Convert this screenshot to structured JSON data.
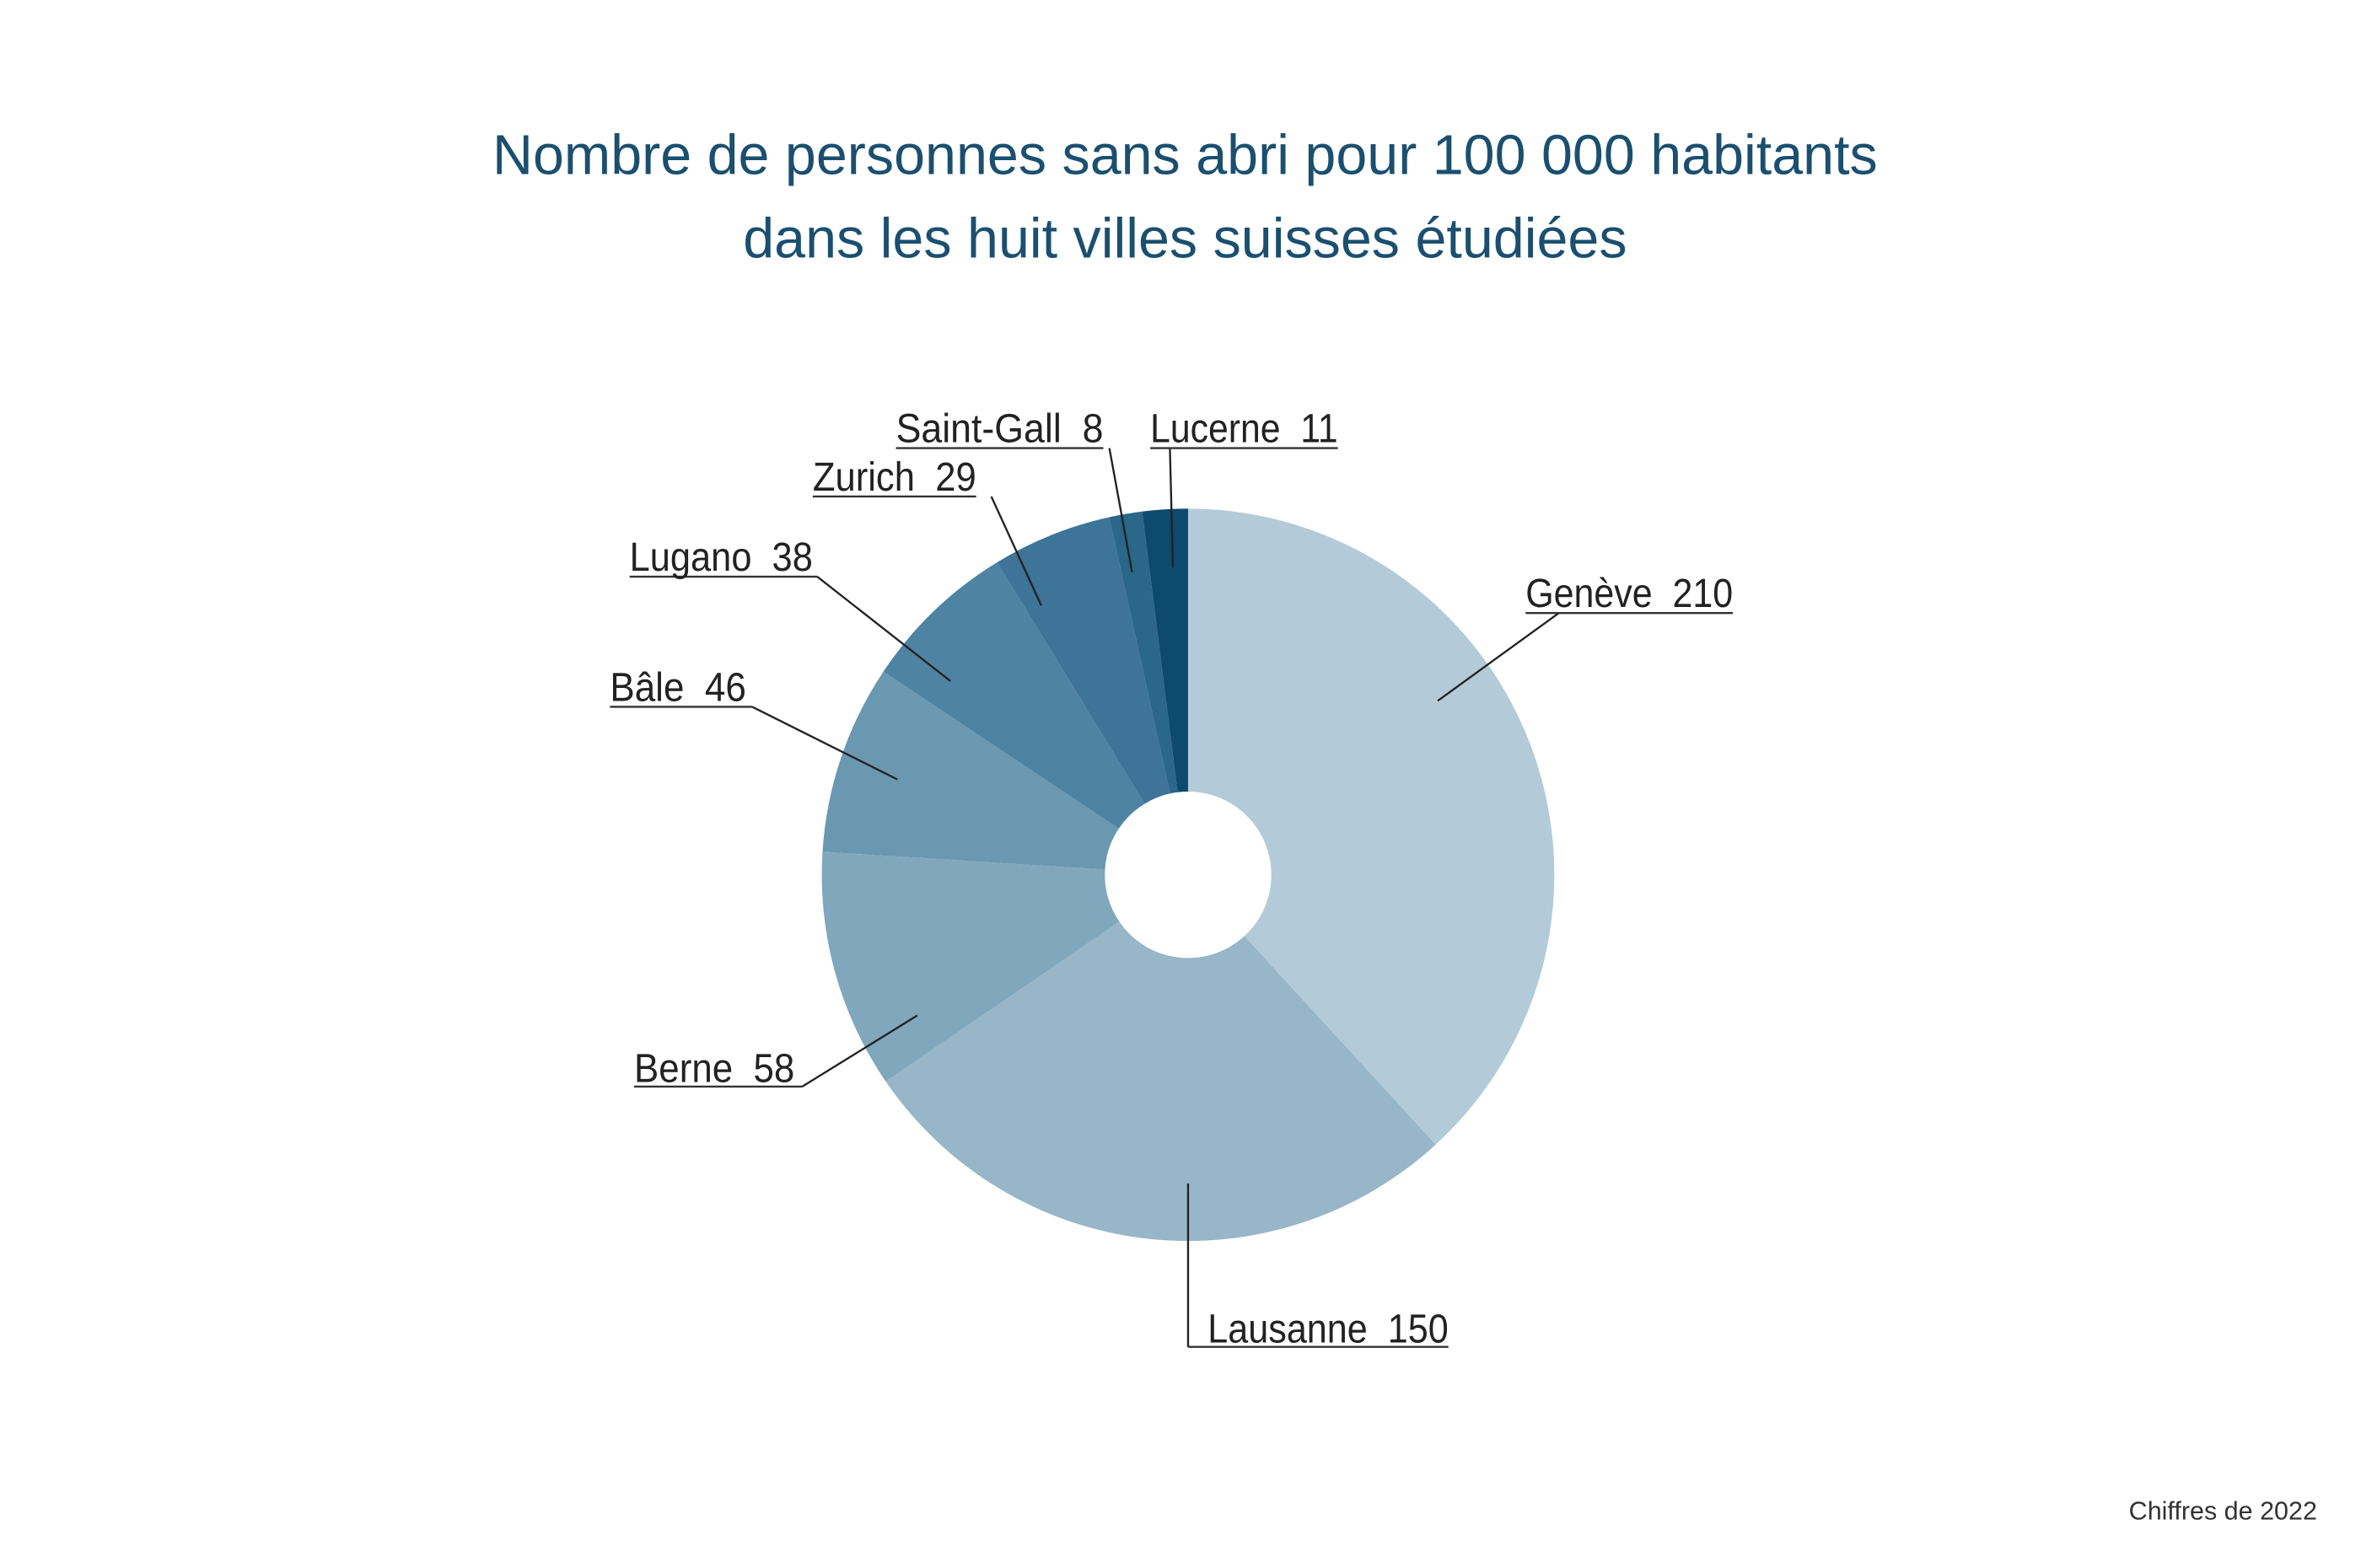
{
  "chart_data": {
    "type": "pie",
    "variant": "donut",
    "title": "Nombre de personnes sans abri pour 100 000 habitants dans les huit villes suisses étudiées",
    "title_lines": [
      "Nombre de personnes sans abri pour 100 000 habitants",
      "dans les huit villes suisses étudiées"
    ],
    "categories": [
      "Genève",
      "Lausanne",
      "Berne",
      "Bâle",
      "Lugano",
      "Zurich",
      "Saint-Gall",
      "Lucerne"
    ],
    "values": [
      210,
      150,
      58,
      46,
      38,
      29,
      8,
      11
    ],
    "labels": [
      "Genève  210",
      "Lausanne  150",
      "Berne  58",
      "Bâle  46",
      "Lugano  38",
      "Zurich  29",
      "Saint-Gall  8",
      "Lucerne  11"
    ],
    "colors": [
      "#b3cbd9",
      "#97b6c8",
      "#80a7bc",
      "#6b98b1",
      "#4f83a3",
      "#3d7498",
      "#2a6789",
      "#0d4b6e"
    ],
    "start": "top",
    "direction": "clockwise",
    "legend": "none",
    "note": "Chiffres de 2022"
  }
}
